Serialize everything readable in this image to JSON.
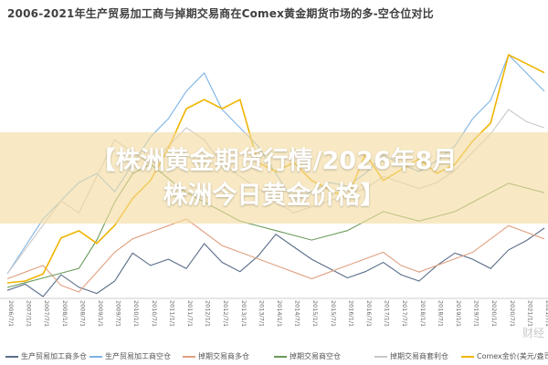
{
  "chart_data": {
    "type": "line",
    "title": "2006-2021年生产贸易加工商与掉期交易商在Comex黄金期货市场的多-空仓位对比",
    "xlabel": "",
    "ylabel": "",
    "x_ticks": [
      "2006/7/1",
      "2007/1/1",
      "2007/7/1",
      "2008/1/1",
      "2008/7/1",
      "2009/1/1",
      "2009/7/1",
      "2010/1/1",
      "2010/7/1",
      "2011/1/1",
      "2011/7/1",
      "2012/1/1",
      "2012/7/1",
      "2013/1/1",
      "2013/7/1",
      "2014/1/1",
      "2014/7/1",
      "2015/1/1",
      "2015/7/1",
      "2016/1/1",
      "2016/7/1",
      "2017/1/1",
      "2017/7/1",
      "2018/1/1",
      "2018/7/1",
      "2019/1/1",
      "2019/7/1",
      "2020/1/1",
      "2020/7/1",
      "2021/1/1",
      "2021/7/1"
    ],
    "grid": false,
    "legend_position": "bottom",
    "series": [
      {
        "name": "生产贸易加工商多仓",
        "color": "#5b6e8a",
        "values": [
          40,
          42,
          38,
          45,
          41,
          39,
          43,
          52,
          48,
          50,
          47,
          55,
          49,
          46,
          51,
          58,
          54,
          50,
          47,
          44,
          46,
          49,
          45,
          43,
          48,
          52,
          50,
          47,
          53,
          56,
          60
        ]
      },
      {
        "name": "生产贸易加工商空仓",
        "color": "#7db4e6",
        "values": [
          120,
          135,
          150,
          160,
          170,
          175,
          165,
          180,
          195,
          205,
          220,
          230,
          210,
          200,
          190,
          175,
          160,
          165,
          170,
          168,
          175,
          185,
          180,
          176,
          182,
          190,
          205,
          215,
          240,
          230,
          220
        ]
      },
      {
        "name": "掉期交易商多仓",
        "color": "#e0a080",
        "values": [
          90,
          95,
          100,
          85,
          80,
          95,
          110,
          120,
          125,
          130,
          135,
          125,
          115,
          110,
          105,
          100,
          95,
          90,
          95,
          100,
          105,
          110,
          100,
          95,
          100,
          105,
          110,
          120,
          130,
          125,
          120
        ]
      },
      {
        "name": "掉期交易商空仓",
        "color": "#6a9a5a",
        "values": [
          80,
          85,
          90,
          95,
          100,
          130,
          170,
          200,
          210,
          195,
          180,
          170,
          160,
          150,
          145,
          140,
          135,
          130,
          135,
          140,
          150,
          160,
          155,
          150,
          155,
          160,
          170,
          180,
          190,
          185,
          180
        ]
      },
      {
        "name": "掉期交易商套利仓",
        "color": "#c8c8c8",
        "values": [
          150,
          170,
          190,
          210,
          200,
          230,
          260,
          250,
          240,
          255,
          270,
          260,
          240,
          230,
          220,
          210,
          200,
          205,
          210,
          215,
          220,
          230,
          225,
          220,
          225,
          235,
          250,
          265,
          285,
          275,
          270
        ]
      },
      {
        "name": "Comex金价(美元/盎司)",
        "color": "#f0b400",
        "values": [
          630,
          640,
          680,
          880,
          920,
          850,
          950,
          1100,
          1200,
          1380,
          1600,
          1650,
          1600,
          1650,
          1300,
          1250,
          1300,
          1200,
          1150,
          1100,
          1350,
          1200,
          1260,
          1320,
          1240,
          1290,
          1420,
          1520,
          1900,
          1850,
          1800
        ]
      }
    ]
  },
  "banner": {
    "line1": "【株洲黄金期货行情/2026年8月",
    "line2": "株洲今日黄金价格】"
  },
  "watermark": "财经"
}
